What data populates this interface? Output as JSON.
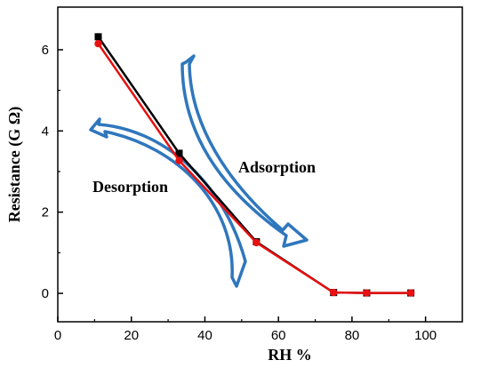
{
  "chart_data": {
    "type": "line",
    "xlabel": "RH %",
    "ylabel": "Resistance (G Ω)",
    "xlim": [
      0,
      110
    ],
    "ylim": [
      -0.7,
      7.05
    ],
    "xticks": [
      0,
      20,
      40,
      60,
      80,
      100
    ],
    "yticks": [
      0,
      2,
      4,
      6
    ],
    "grid": false,
    "legend": "none",
    "series": [
      {
        "marker": "square",
        "color": "#000000",
        "x": [
          11,
          33,
          54,
          75,
          84,
          96
        ],
        "y": [
          6.32,
          3.45,
          1.27,
          0.02,
          0.01,
          0.01
        ]
      },
      {
        "marker": "circle",
        "color": "#e81010",
        "x": [
          11,
          33,
          54,
          75,
          84,
          96
        ],
        "y": [
          6.15,
          3.27,
          1.25,
          0.02,
          0.01,
          0.01
        ]
      }
    ],
    "annotations": [
      {
        "text": "Adsorption"
      },
      {
        "text": "Desorption"
      }
    ],
    "arrow_color": "#2f77bd"
  }
}
